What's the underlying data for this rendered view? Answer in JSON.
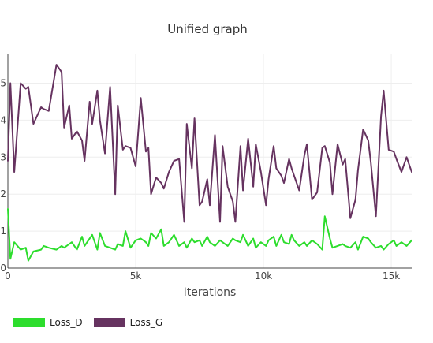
{
  "chart_data": {
    "type": "line",
    "title": "Unified graph",
    "xlabel": "Iterations",
    "ylabel": "",
    "xlim": [
      0,
      15800
    ],
    "ylim": [
      0,
      5.8
    ],
    "x_ticks": [
      0,
      5000,
      10000,
      15000
    ],
    "x_tick_labels": [
      "0",
      "5k",
      "10k",
      "15k"
    ],
    "y_ticks": [
      0,
      1,
      2,
      3,
      4,
      5
    ],
    "y_tick_labels": [
      "0",
      "1",
      "2",
      "3",
      "4",
      "5"
    ],
    "grid": true,
    "legend_position": "bottom-left",
    "x": [
      0,
      100,
      250,
      500,
      700,
      800,
      1000,
      1300,
      1400,
      1600,
      1900,
      2100,
      2200,
      2400,
      2500,
      2700,
      2900,
      3000,
      3200,
      3300,
      3500,
      3600,
      3800,
      4000,
      4200,
      4300,
      4500,
      4600,
      4800,
      5000,
      5200,
      5400,
      5500,
      5600,
      5800,
      6000,
      6100,
      6300,
      6500,
      6700,
      6900,
      7000,
      7200,
      7300,
      7500,
      7600,
      7800,
      7900,
      8100,
      8300,
      8400,
      8600,
      8800,
      8900,
      9100,
      9200,
      9400,
      9600,
      9700,
      9900,
      10100,
      10200,
      10400,
      10500,
      10700,
      10800,
      11000,
      11100,
      11200,
      11400,
      11600,
      11700,
      11900,
      12100,
      12300,
      12400,
      12600,
      12700,
      12900,
      13100,
      13200,
      13400,
      13600,
      13700,
      13900,
      14100,
      14200,
      14400,
      14600,
      14700,
      14900,
      15100,
      15200,
      15400,
      15600,
      15800
    ],
    "series": [
      {
        "name": "Loss_D",
        "color": "#2ddd2d",
        "values": [
          1.6,
          0.25,
          0.7,
          0.5,
          0.55,
          0.2,
          0.45,
          0.5,
          0.6,
          0.55,
          0.5,
          0.6,
          0.55,
          0.65,
          0.7,
          0.5,
          0.85,
          0.6,
          0.8,
          0.9,
          0.5,
          0.95,
          0.6,
          0.55,
          0.5,
          0.65,
          0.6,
          1.0,
          0.55,
          0.75,
          0.8,
          0.7,
          0.6,
          0.95,
          0.8,
          1.05,
          0.6,
          0.7,
          0.9,
          0.6,
          0.7,
          0.55,
          0.8,
          0.7,
          0.75,
          0.6,
          0.85,
          0.7,
          0.6,
          0.75,
          0.7,
          0.6,
          0.8,
          0.75,
          0.7,
          0.9,
          0.6,
          0.8,
          0.55,
          0.7,
          0.6,
          0.75,
          0.85,
          0.6,
          0.9,
          0.7,
          0.65,
          0.9,
          0.75,
          0.6,
          0.7,
          0.6,
          0.75,
          0.65,
          0.5,
          1.4,
          0.8,
          0.55,
          0.6,
          0.65,
          0.6,
          0.55,
          0.7,
          0.5,
          0.85,
          0.8,
          0.7,
          0.55,
          0.6,
          0.5,
          0.65,
          0.75,
          0.6,
          0.7,
          0.6,
          0.75
        ]
      },
      {
        "name": "Loss_G",
        "color": "#663360",
        "values": [
          2.9,
          5.0,
          2.6,
          5.0,
          4.85,
          4.9,
          3.9,
          4.35,
          4.3,
          4.25,
          5.5,
          5.3,
          3.8,
          4.4,
          3.5,
          3.7,
          3.45,
          2.9,
          4.5,
          3.9,
          4.8,
          4.0,
          3.1,
          4.9,
          2.0,
          4.4,
          3.2,
          3.3,
          3.25,
          2.75,
          4.6,
          3.15,
          3.25,
          2.0,
          2.45,
          2.3,
          2.15,
          2.6,
          2.9,
          2.95,
          1.25,
          3.9,
          2.7,
          4.05,
          1.7,
          1.8,
          2.4,
          1.7,
          3.6,
          1.25,
          3.3,
          2.2,
          1.8,
          1.25,
          3.3,
          2.1,
          3.5,
          2.2,
          3.35,
          2.6,
          1.7,
          2.4,
          3.3,
          2.7,
          2.5,
          2.3,
          2.95,
          2.7,
          2.5,
          2.1,
          3.05,
          3.35,
          1.85,
          2.05,
          3.25,
          3.3,
          2.85,
          2.0,
          3.35,
          2.8,
          2.95,
          1.35,
          1.85,
          2.65,
          3.75,
          3.45,
          2.85,
          1.4,
          4.1,
          4.8,
          3.2,
          3.15,
          2.95,
          2.6,
          3.0,
          2.6
        ]
      }
    ]
  },
  "legend": {
    "items": [
      {
        "label": "Loss_D",
        "color": "#2ddd2d"
      },
      {
        "label": "Loss_G",
        "color": "#663360"
      }
    ]
  }
}
